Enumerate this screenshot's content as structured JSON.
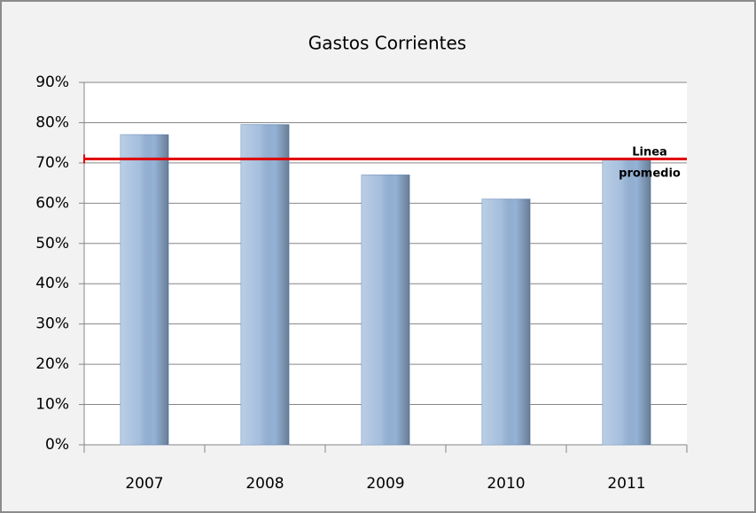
{
  "chart_data": {
    "type": "bar",
    "title": "Gastos Corrientes",
    "categories": [
      "2007",
      "2008",
      "2009",
      "2010",
      "2011"
    ],
    "values": [
      77,
      79.5,
      67,
      61,
      71
    ],
    "color": "#95b3d7",
    "ylim": [
      0,
      90
    ],
    "yticks": [
      {
        "value": 0,
        "label": "0%"
      },
      {
        "value": 10,
        "label": "10%"
      },
      {
        "value": 20,
        "label": "20%"
      },
      {
        "value": 30,
        "label": "30%"
      },
      {
        "value": 40,
        "label": "40%"
      },
      {
        "value": 50,
        "label": "50%"
      },
      {
        "value": 60,
        "label": "60%"
      },
      {
        "value": 70,
        "label": "70%"
      },
      {
        "value": 80,
        "label": "80%"
      },
      {
        "value": 90,
        "label": "90%"
      }
    ],
    "grid": true,
    "reference_line": {
      "value": 71,
      "label_lines": [
        "Linea",
        "promedio"
      ],
      "color": "#e00000"
    }
  }
}
